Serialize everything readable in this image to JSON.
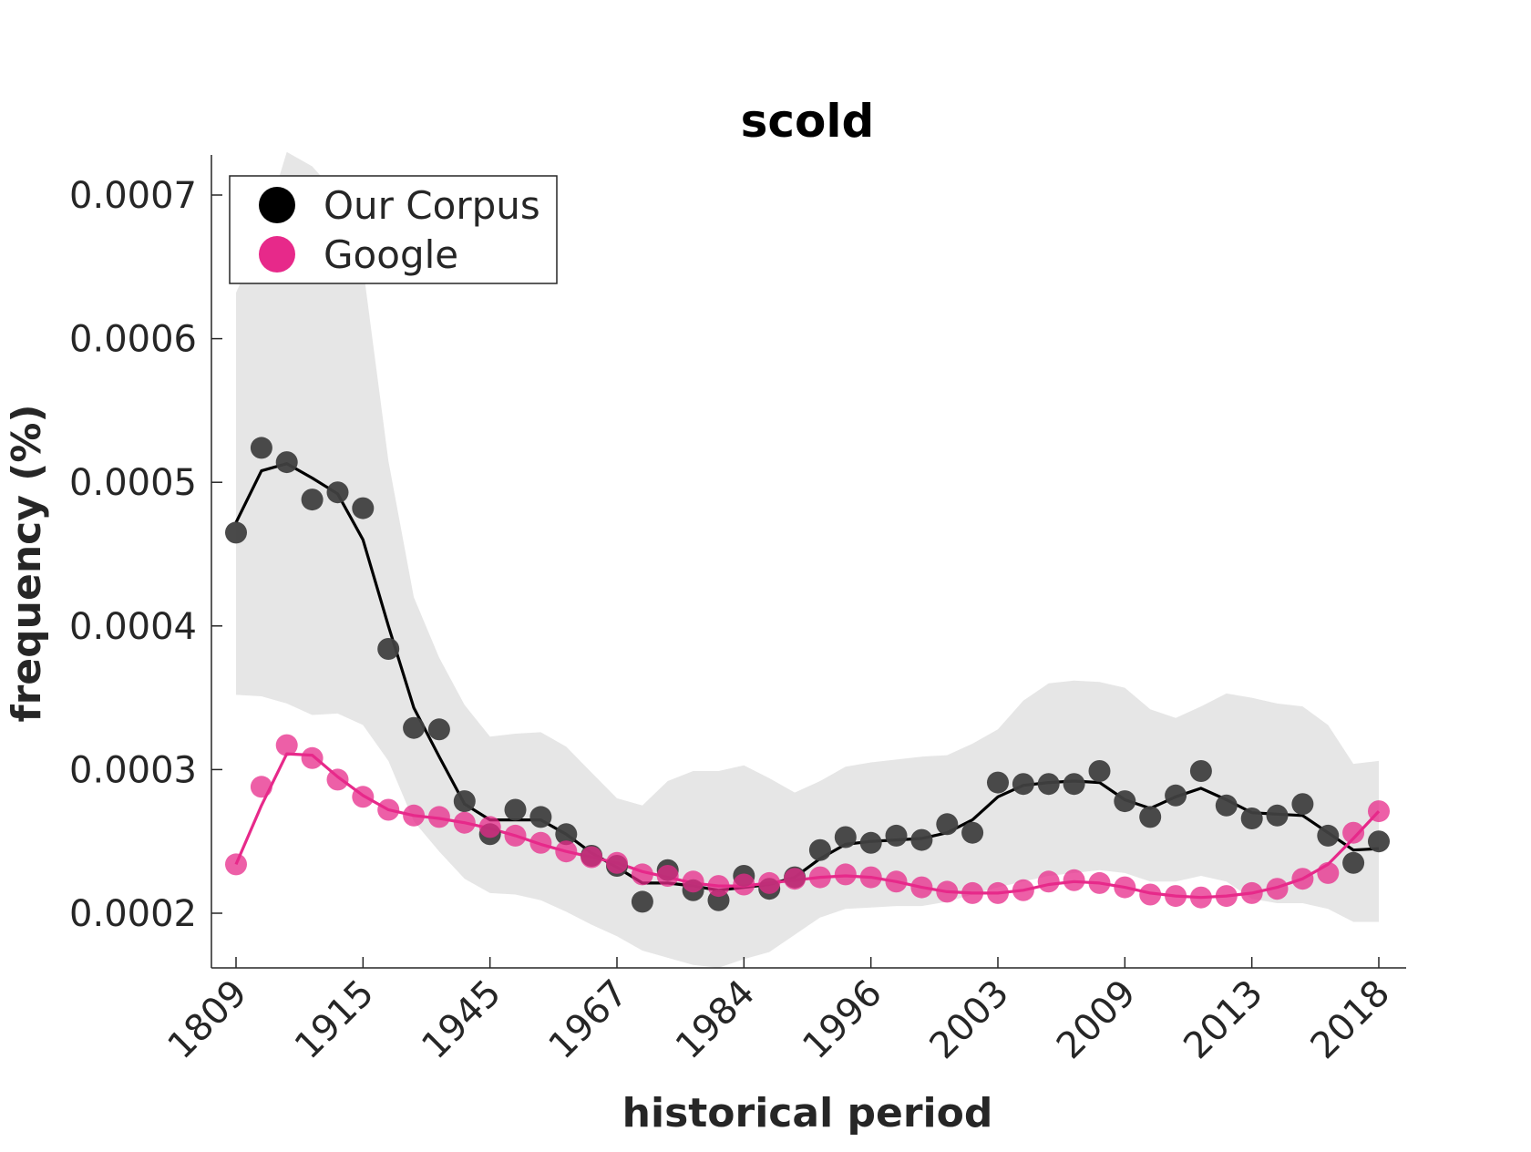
{
  "chart_data": {
    "type": "line",
    "title": "scold",
    "xlabel": "historical period",
    "ylabel": "frequency (%)",
    "x_tick_labels": [
      "1809",
      "1915",
      "1945",
      "1967",
      "1984",
      "1996",
      "2003",
      "2009",
      "2013",
      "2018"
    ],
    "y_ticks": [
      0.0002,
      0.0003,
      0.0004,
      0.0005,
      0.0006,
      0.0007
    ],
    "y_tick_labels": [
      "0.0002",
      "0.0003",
      "0.0004",
      "0.0005",
      "0.0006",
      "0.0007"
    ],
    "ylim": [
      0.000162,
      0.000728
    ],
    "grid": false,
    "legend_position": "top-left",
    "n_periods": 46,
    "tick_indices": [
      0,
      5,
      10,
      15,
      20,
      25,
      30,
      35,
      40,
      45
    ],
    "series": [
      {
        "name": "Our Corpus",
        "color": "#000000",
        "marker_color": "#404040",
        "points": [
          0.000465,
          0.000524,
          0.000514,
          0.000488,
          0.000493,
          0.000482,
          0.000384,
          0.000329,
          0.000328,
          0.000278,
          0.000255,
          0.000272,
          0.000267,
          0.000255,
          0.00024,
          0.000233,
          0.000208,
          0.00023,
          0.000216,
          0.000209,
          0.000226,
          0.000217,
          0.000225,
          0.000244,
          0.000253,
          0.000249,
          0.000254,
          0.000251,
          0.000262,
          0.000256,
          0.000291,
          0.00029,
          0.00029,
          0.00029,
          0.000299,
          0.000278,
          0.000267,
          0.000282,
          0.000299,
          0.000275,
          0.000266,
          0.000268,
          0.000276,
          0.000254,
          0.000235,
          0.00025
        ],
        "smoothed": [
          0.000472,
          0.000508,
          0.000513,
          0.000503,
          0.000492,
          0.00046,
          0.0004,
          0.000343,
          0.000309,
          0.000276,
          0.000265,
          0.000265,
          0.000265,
          0.000255,
          0.000242,
          0.000232,
          0.000221,
          0.000221,
          0.000219,
          0.000216,
          0.000218,
          0.00022,
          0.000225,
          0.000238,
          0.000248,
          0.00025,
          0.000251,
          0.000252,
          0.000256,
          0.000265,
          0.000281,
          0.000289,
          0.000291,
          0.000292,
          0.000291,
          0.000279,
          0.000273,
          0.000281,
          0.000287,
          0.000279,
          0.00027,
          0.000269,
          0.000268,
          0.000256,
          0.000244,
          0.000245
        ],
        "band_upper": [
          0.000632,
          0.000672,
          0.00073,
          0.00072,
          0.0007,
          0.00065,
          0.000515,
          0.00042,
          0.000378,
          0.000345,
          0.000323,
          0.000325,
          0.000326,
          0.000316,
          0.000298,
          0.00028,
          0.000275,
          0.000292,
          0.000299,
          0.000299,
          0.000303,
          0.000294,
          0.000284,
          0.000292,
          0.000302,
          0.000305,
          0.000307,
          0.000309,
          0.00031,
          0.000318,
          0.000328,
          0.000348,
          0.00036,
          0.000362,
          0.000361,
          0.000357,
          0.000342,
          0.000336,
          0.000344,
          0.000353,
          0.00035,
          0.000346,
          0.000344,
          0.000331,
          0.000304,
          0.000306
        ],
        "band_lower": [
          0.000352,
          0.000351,
          0.000346,
          0.000338,
          0.000339,
          0.000331,
          0.000306,
          0.000264,
          0.000243,
          0.000224,
          0.000214,
          0.000213,
          0.000209,
          0.000201,
          0.000192,
          0.000184,
          0.000174,
          0.000169,
          0.000164,
          0.000162,
          0.000168,
          0.000173,
          0.000185,
          0.000197,
          0.000203,
          0.000204,
          0.000205,
          0.000205,
          0.000208,
          0.000213,
          0.000218,
          0.000222,
          0.000226,
          0.000228,
          0.00023,
          0.000228,
          0.000222,
          0.000222,
          0.000226,
          0.000222,
          0.00021,
          0.000207,
          0.000207,
          0.000203,
          0.000194,
          0.000194
        ]
      },
      {
        "name": "Google",
        "color": "#e7298a",
        "marker_color": "#e7298a",
        "points": [
          0.000234,
          0.000288,
          0.000317,
          0.000308,
          0.000293,
          0.000281,
          0.000272,
          0.000268,
          0.000267,
          0.000263,
          0.00026,
          0.000254,
          0.000249,
          0.000243,
          0.000239,
          0.000235,
          0.000227,
          0.000226,
          0.000222,
          0.000219,
          0.00022,
          0.000221,
          0.000224,
          0.000225,
          0.000227,
          0.000225,
          0.000222,
          0.000218,
          0.000215,
          0.000214,
          0.000214,
          0.000216,
          0.000222,
          0.000223,
          0.000221,
          0.000218,
          0.000213,
          0.000212,
          0.000211,
          0.000212,
          0.000214,
          0.000217,
          0.000224,
          0.000228,
          0.000256,
          0.000271
        ],
        "smoothed": [
          0.000234,
          0.000275,
          0.000311,
          0.00031,
          0.000295,
          0.000282,
          0.000272,
          0.000268,
          0.000266,
          0.000263,
          0.000259,
          0.000254,
          0.000248,
          0.000243,
          0.000239,
          0.000235,
          0.000229,
          0.000225,
          0.000221,
          0.000219,
          0.000219,
          0.000221,
          0.000223,
          0.000225,
          0.000226,
          0.000225,
          0.000222,
          0.000218,
          0.000215,
          0.000214,
          0.000214,
          0.000216,
          0.00022,
          0.000222,
          0.000221,
          0.000218,
          0.000214,
          0.000212,
          0.000211,
          0.000212,
          0.000214,
          0.000218,
          0.000224,
          0.000234,
          0.000252,
          0.000271
        ]
      }
    ]
  }
}
